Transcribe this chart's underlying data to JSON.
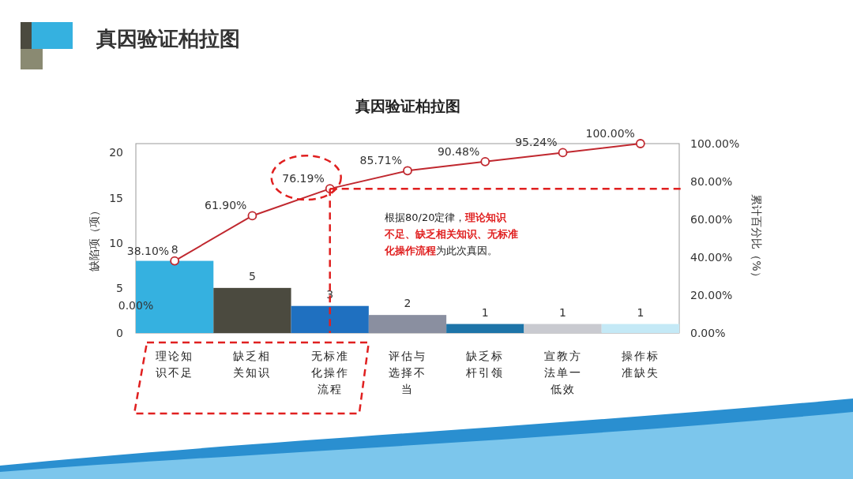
{
  "chart_data": {
    "type": "bar",
    "title": "真因验证柏拉图",
    "categories": [
      "理论知识不足",
      "缺乏相关知识",
      "无标准化操作流程",
      "评估与选择不当",
      "缺乏标杆引领",
      "宣教方法单一低效",
      "操作标准缺失"
    ],
    "values": [
      8,
      5,
      3,
      2,
      1,
      1,
      1
    ],
    "colors": [
      "#35b1e0",
      "#4b4a3f",
      "#1f70c0",
      "#8a8fa0",
      "#1d74a8",
      "#c9cad0",
      "#c4e9f6"
    ],
    "data_labels": true,
    "series": [
      {
        "type": "line",
        "axis": "y2",
        "color": "#c0282f",
        "values": [
          38.1,
          61.9,
          76.19,
          85.71,
          90.48,
          95.24,
          100.0
        ],
        "value_labels": [
          "38.10%",
          "61.90%",
          "76.19%",
          "85.71%",
          "90.48%",
          "95.24%",
          "100.00%"
        ]
      }
    ],
    "marker": "circle",
    "ylabel": "缺陷项（项）",
    "y2label": "累计百分比（%）",
    "ylim": [
      0,
      21
    ],
    "yticks": [
      0,
      5,
      10,
      15,
      20
    ],
    "y2lim": [
      0,
      100
    ],
    "y2ticks": [
      {
        "value": 0,
        "label": "0.00%"
      },
      {
        "value": 20,
        "label": "20.00%"
      },
      {
        "value": 40,
        "label": "40.00%"
      },
      {
        "value": 60,
        "label": "60.00%"
      },
      {
        "value": 80,
        "label": "80.00%"
      },
      {
        "value": 100,
        "label": "100.00%"
      }
    ],
    "grid": false,
    "legend": false,
    "annotations": [
      "真因验证柏拉图",
      "根据80/20定律，",
      "理论知识不足、缺乏相关知识、无标准化操作流程",
      "为此次真因。",
      "0.00%"
    ]
  }
}
